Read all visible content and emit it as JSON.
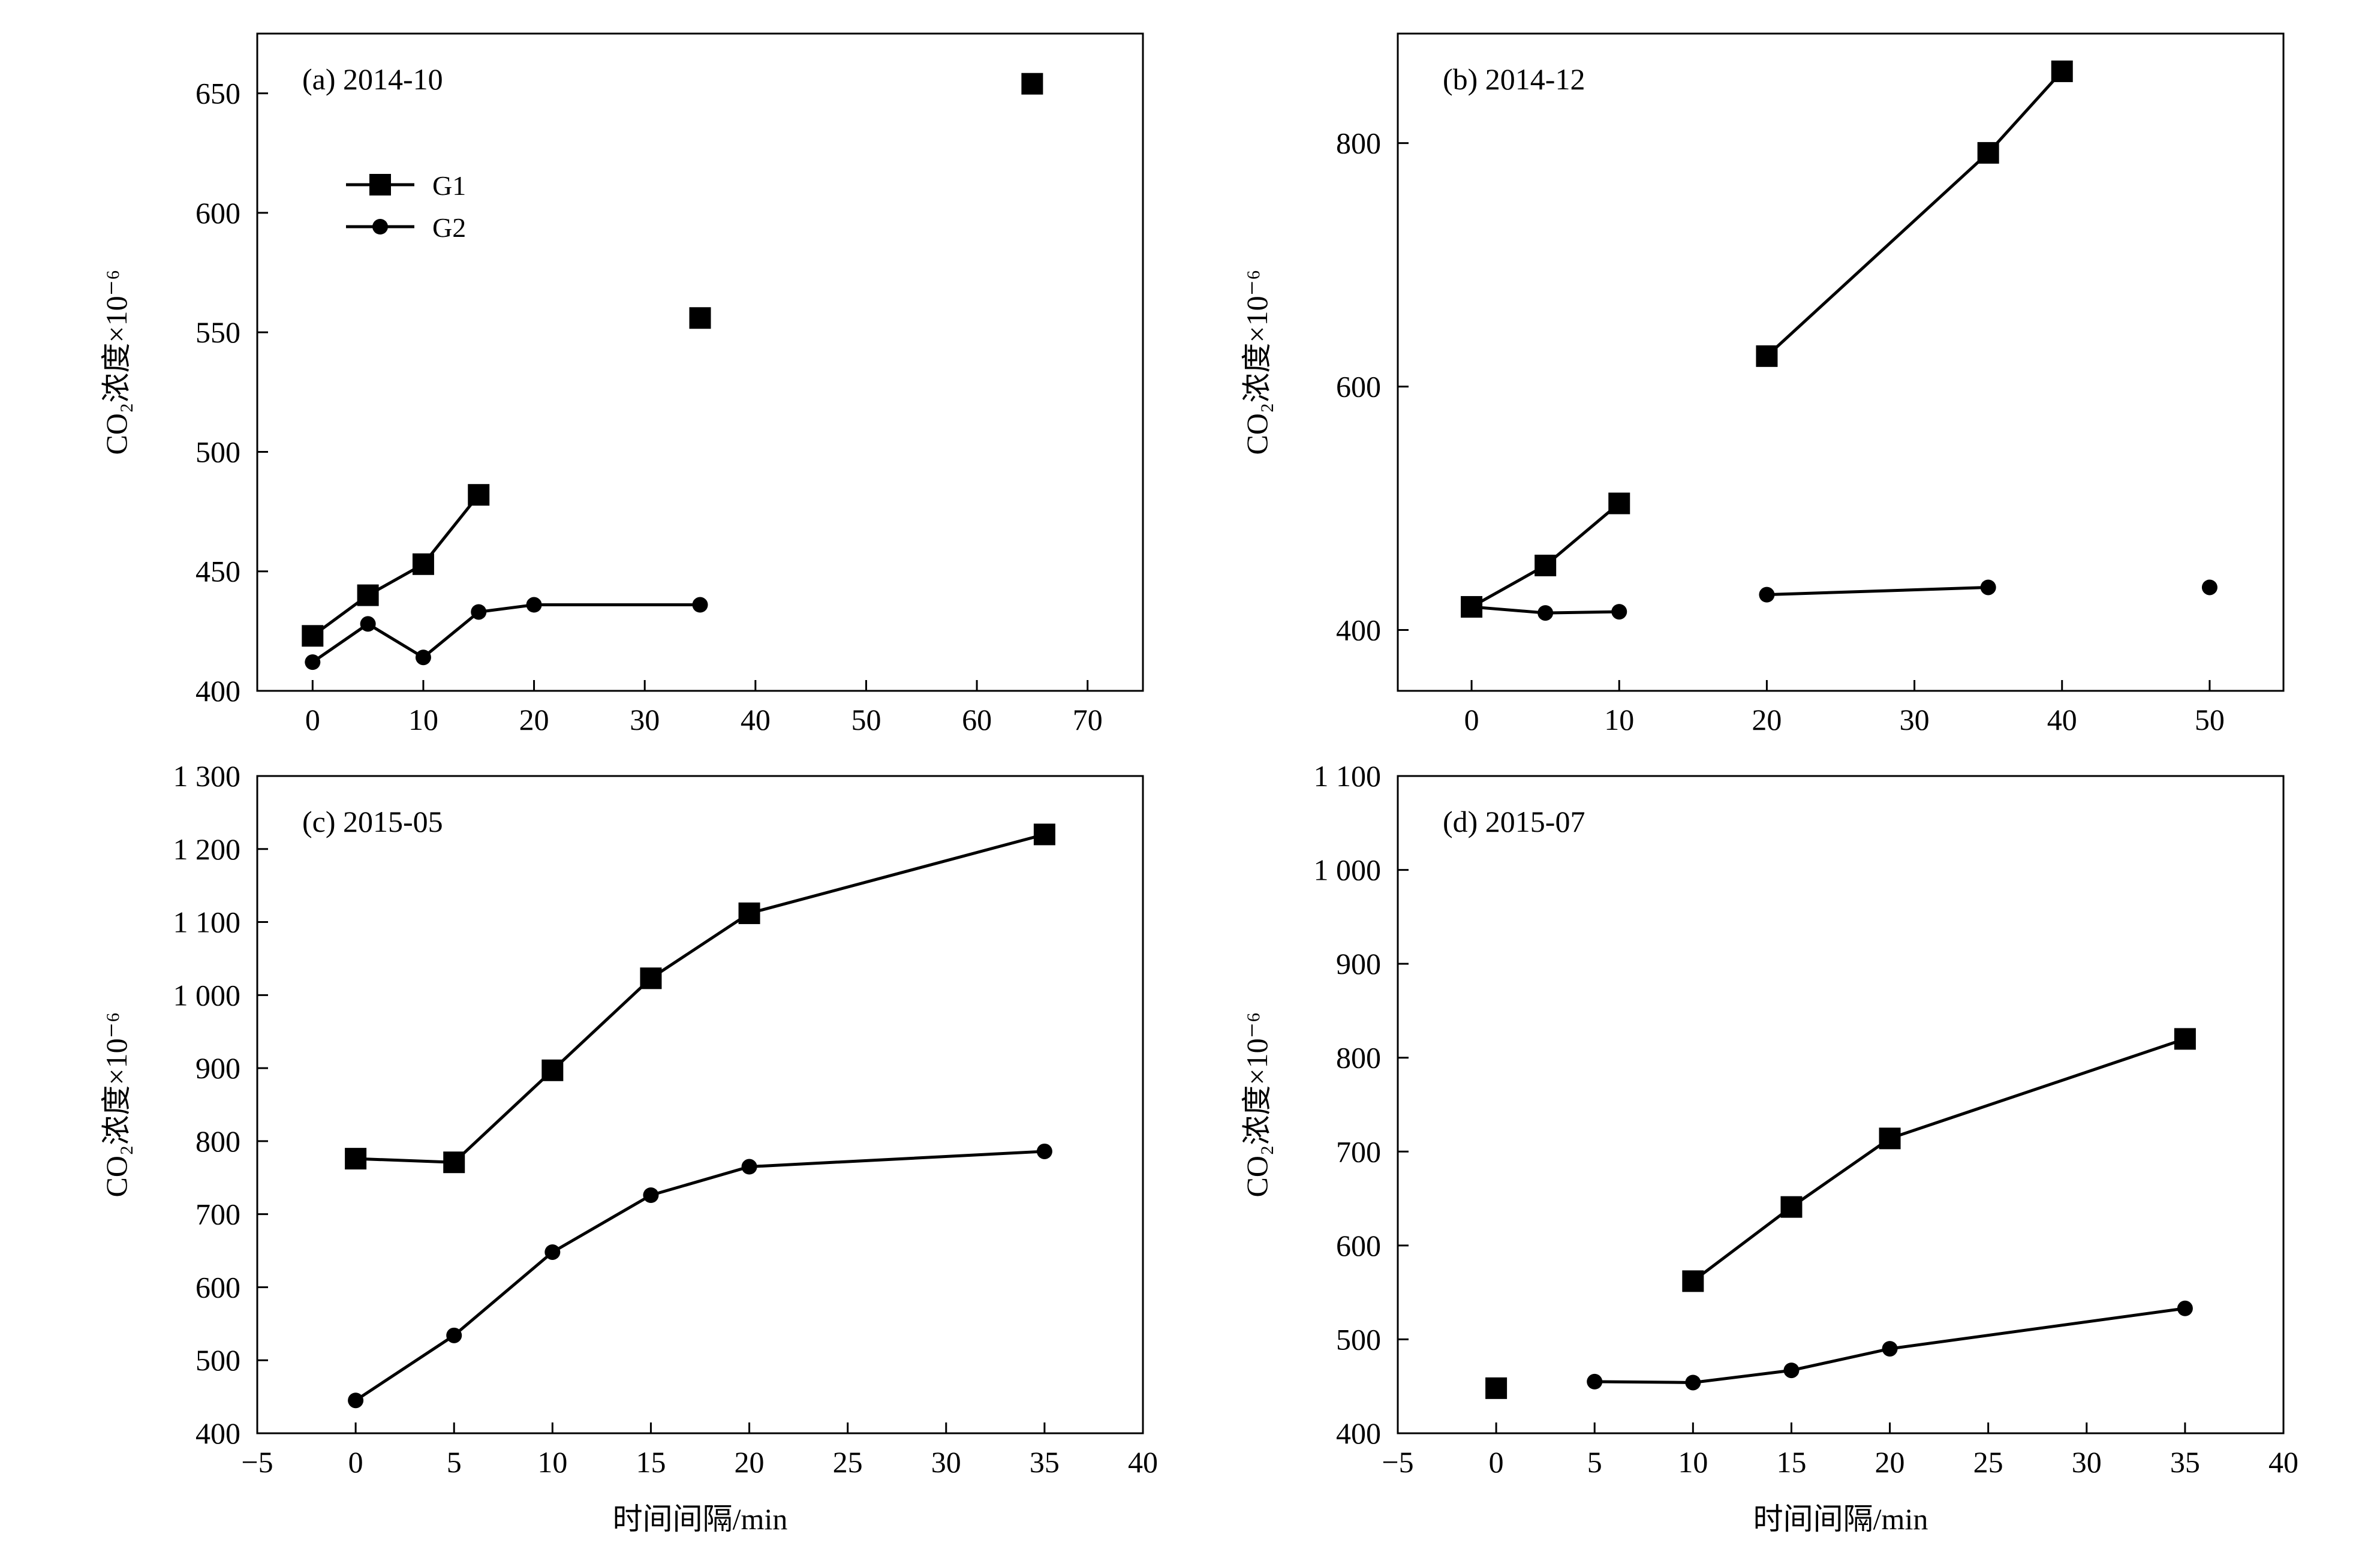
{
  "figure": {
    "x_label": "时间间隔/min",
    "y_label": "CO₂浓度×10⁻⁶",
    "legend": {
      "g1": "G1",
      "g2": "G2"
    }
  },
  "chart_data": [
    {
      "type": "line",
      "title": "(a) 2014-10",
      "xlabel": "",
      "ylabel": "CO₂浓度×10⁻⁶",
      "xlim": [
        -5,
        75
      ],
      "ylim": [
        400,
        675
      ],
      "xticks": [
        0,
        10,
        20,
        30,
        40,
        50,
        60,
        70
      ],
      "xtick_labels": [
        "0",
        "10",
        "20",
        "30",
        "40",
        "50",
        "60",
        "70"
      ],
      "yticks": [
        400,
        450,
        500,
        550,
        600,
        650
      ],
      "ytick_labels": [
        "400",
        "450",
        "500",
        "550",
        "600",
        "650"
      ],
      "legend": "upper-left",
      "series": [
        {
          "name": "G1",
          "marker": "square",
          "segments": [
            [
              [
                0,
                423
              ],
              [
                5,
                440
              ],
              [
                10,
                453
              ],
              [
                15,
                482
              ]
            ],
            [
              [
                35,
                556
              ]
            ],
            [
              [
                65,
                654
              ]
            ]
          ]
        },
        {
          "name": "G2",
          "marker": "circle",
          "segments": [
            [
              [
                0,
                412
              ],
              [
                5,
                428
              ],
              [
                10,
                414
              ],
              [
                15,
                433
              ],
              [
                20,
                436
              ],
              [
                35,
                436
              ]
            ]
          ]
        }
      ]
    },
    {
      "type": "line",
      "title": "(b) 2014-12",
      "xlabel": "",
      "ylabel": "CO₂浓度×10⁻⁶",
      "xlim": [
        -5,
        55
      ],
      "ylim": [
        350,
        890
      ],
      "xticks": [
        0,
        10,
        20,
        30,
        40,
        50
      ],
      "xtick_labels": [
        "0",
        "10",
        "20",
        "30",
        "40",
        "50"
      ],
      "yticks": [
        400,
        600,
        800
      ],
      "ytick_labels": [
        "400",
        "600",
        "800"
      ],
      "series": [
        {
          "name": "G1",
          "marker": "square",
          "segments": [
            [
              [
                0,
                419
              ],
              [
                5,
                453
              ],
              [
                10,
                504
              ]
            ],
            [
              [
                20,
                625
              ],
              [
                35,
                792
              ],
              [
                40,
                859
              ]
            ]
          ]
        },
        {
          "name": "G2",
          "marker": "circle",
          "segments": [
            [
              [
                0,
                419
              ],
              [
                5,
                414
              ],
              [
                10,
                415
              ]
            ],
            [
              [
                20,
                429
              ],
              [
                35,
                435
              ]
            ],
            [
              [
                50,
                435
              ]
            ]
          ]
        }
      ]
    },
    {
      "type": "line",
      "title": "(c) 2015-05",
      "xlabel": "时间间隔/min",
      "ylabel": "CO₂浓度×10⁻⁶",
      "xlim": [
        -5,
        40
      ],
      "ylim": [
        400,
        1300
      ],
      "xticks": [
        -5,
        0,
        5,
        10,
        15,
        20,
        25,
        30,
        35,
        40
      ],
      "xtick_labels": [
        "−5",
        "0",
        "5",
        "10",
        "15",
        "20",
        "25",
        "30",
        "35",
        "40"
      ],
      "yticks": [
        400,
        500,
        600,
        700,
        800,
        900,
        1000,
        1100,
        1200,
        1300
      ],
      "ytick_labels": [
        "400",
        "500",
        "600",
        "700",
        "800",
        "900",
        "1 000",
        "1 100",
        "1 200",
        "1 300"
      ],
      "series": [
        {
          "name": "G1",
          "marker": "square",
          "segments": [
            [
              [
                0,
                776
              ],
              [
                5,
                771
              ],
              [
                10,
                897
              ],
              [
                15,
                1023
              ],
              [
                20,
                1112
              ],
              [
                35,
                1220
              ]
            ]
          ]
        },
        {
          "name": "G2",
          "marker": "circle",
          "segments": [
            [
              [
                0,
                445
              ],
              [
                5,
                534
              ],
              [
                10,
                648
              ],
              [
                15,
                726
              ],
              [
                20,
                765
              ],
              [
                35,
                786
              ]
            ]
          ]
        }
      ]
    },
    {
      "type": "line",
      "title": "(d) 2015-07",
      "xlabel": "时间间隔/min",
      "ylabel": "CO₂浓度×10⁻⁶",
      "xlim": [
        -5,
        40
      ],
      "ylim": [
        400,
        1100
      ],
      "xticks": [
        -5,
        0,
        5,
        10,
        15,
        20,
        25,
        30,
        35,
        40
      ],
      "xtick_labels": [
        "−5",
        "0",
        "5",
        "10",
        "15",
        "20",
        "25",
        "30",
        "35",
        "40"
      ],
      "yticks": [
        400,
        500,
        600,
        700,
        800,
        900,
        1000,
        1100
      ],
      "ytick_labels": [
        "400",
        "500",
        "600",
        "700",
        "800",
        "900",
        "1 000",
        "1 100"
      ],
      "series": [
        {
          "name": "G1",
          "marker": "square",
          "segments": [
            [
              [
                0,
                448
              ]
            ],
            [
              [
                10,
                562
              ],
              [
                15,
                641
              ],
              [
                20,
                714
              ],
              [
                35,
                820
              ]
            ]
          ]
        },
        {
          "name": "G2",
          "marker": "circle",
          "segments": [
            [
              [
                5,
                455
              ],
              [
                10,
                454
              ],
              [
                15,
                467
              ],
              [
                20,
                490
              ],
              [
                35,
                533
              ]
            ]
          ]
        }
      ]
    }
  ]
}
